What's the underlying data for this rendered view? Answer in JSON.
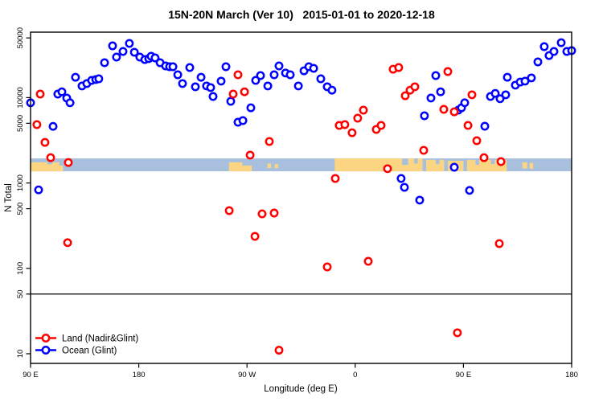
{
  "title": "15N-20N March (Ver 10)   2015-01-01 to 2020-12-18",
  "legend": {
    "items": [
      {
        "label": "Land (Nadir&Glint)",
        "color": "#ff0000"
      },
      {
        "label": "Ocean (Glint)",
        "color": "#0000ff"
      }
    ]
  },
  "chart_data": {
    "type": "scatter",
    "title": "15N-20N March (Ver 10)   2015-01-01 to 2020-12-18",
    "xlabel": "Longitude (deg E)",
    "ylabel": "N Total",
    "y_scale": "log10",
    "ylim": [
      8,
      60000
    ],
    "y_ticks": [
      50000,
      10000,
      5000,
      1000,
      500,
      100,
      50,
      10
    ],
    "x_axis_note": "x stored as degrees east of left edge; axis wraps the globe: 0=90E, 90=180, 180=90W, 270=0, 360=90E, 450=180",
    "x_span_deg": 450,
    "x_ticks": [
      {
        "d": 0,
        "label": "90 E"
      },
      {
        "d": 90,
        "label": "180"
      },
      {
        "d": 180,
        "label": "90 W"
      },
      {
        "d": 270,
        "label": "0"
      },
      {
        "d": 360,
        "label": "90 E"
      },
      {
        "d": 450,
        "label": "180"
      }
    ],
    "hline_value": 50,
    "grid": false,
    "legend_position": "bottom-left",
    "series": [
      {
        "name": "Ocean (Glint)",
        "color": "#0000ff",
        "marker": "open-circle",
        "points": [
          [
            0,
            8700
          ],
          [
            6.7,
            830
          ],
          [
            18.7,
            4600
          ],
          [
            22.7,
            11000
          ],
          [
            26.1,
            11700
          ],
          [
            30.1,
            9900
          ],
          [
            32.8,
            8700
          ],
          [
            37.4,
            17300
          ],
          [
            42.8,
            13700
          ],
          [
            46.8,
            14600
          ],
          [
            50.8,
            15900
          ],
          [
            54.2,
            16300
          ],
          [
            56.8,
            16600
          ],
          [
            61.5,
            25600
          ],
          [
            68.2,
            40400
          ],
          [
            71.5,
            29800
          ],
          [
            76.9,
            34700
          ],
          [
            82.2,
            43100
          ],
          [
            86.3,
            34000
          ],
          [
            90.9,
            29800
          ],
          [
            95,
            27900
          ],
          [
            98.3,
            28600
          ],
          [
            100.3,
            30500
          ],
          [
            103.6,
            29200
          ],
          [
            107.7,
            25600
          ],
          [
            112.3,
            23500
          ],
          [
            115.7,
            23000
          ],
          [
            118.4,
            23000
          ],
          [
            122.4,
            18500
          ],
          [
            126.4,
            14600
          ],
          [
            132.4,
            22500
          ],
          [
            137.1,
            13400
          ],
          [
            141.8,
            17300
          ],
          [
            146.4,
            13700
          ],
          [
            149.8,
            13100
          ],
          [
            151.8,
            10300
          ],
          [
            158.5,
            15600
          ],
          [
            162.5,
            23000
          ],
          [
            166.5,
            9050
          ],
          [
            172.5,
            5150
          ],
          [
            176.6,
            5380
          ],
          [
            183.2,
            7600
          ],
          [
            187.2,
            15900
          ],
          [
            191.2,
            18100
          ],
          [
            197.3,
            13700
          ],
          [
            202.6,
            18500
          ],
          [
            206.6,
            23500
          ],
          [
            212,
            19400
          ],
          [
            216,
            18500
          ],
          [
            222.7,
            13700
          ],
          [
            227.4,
            20600
          ],
          [
            231.4,
            23000
          ],
          [
            235.4,
            22000
          ],
          [
            241.4,
            16600
          ],
          [
            246.7,
            13400
          ],
          [
            250.7,
            12200
          ],
          [
            308.2,
            1130
          ],
          [
            310.9,
            890
          ],
          [
            323.6,
            630
          ],
          [
            327.6,
            6120
          ],
          [
            333,
            9900
          ],
          [
            337,
            18100
          ],
          [
            341,
            11700
          ],
          [
            352.4,
            1530
          ],
          [
            355.7,
            7130
          ],
          [
            358.4,
            7600
          ],
          [
            361.1,
            8700
          ],
          [
            365.1,
            820
          ],
          [
            377.8,
            4620
          ],
          [
            382.5,
            10300
          ],
          [
            386.5,
            11200
          ],
          [
            390.5,
            9700
          ],
          [
            395.2,
            10800
          ],
          [
            396.5,
            17300
          ],
          [
            403.2,
            14000
          ],
          [
            407.2,
            15200
          ],
          [
            411.2,
            15600
          ],
          [
            416.5,
            17000
          ],
          [
            421.9,
            26200
          ],
          [
            427.2,
            39500
          ],
          [
            431.2,
            31100
          ],
          [
            435.3,
            34700
          ],
          [
            441.3,
            44000
          ],
          [
            446,
            34700
          ],
          [
            450,
            35500
          ]
        ]
      },
      {
        "name": "Land (Nadir&Glint)",
        "color": "#ff0000",
        "marker": "open-circle",
        "points": [
          [
            8,
            11000
          ],
          [
            5.3,
            4830
          ],
          [
            12,
            2990
          ],
          [
            16.7,
            1980
          ],
          [
            31.4,
            1740
          ],
          [
            30.8,
            200
          ],
          [
            165.2,
            474
          ],
          [
            168.5,
            11000
          ],
          [
            172.5,
            18500
          ],
          [
            177.9,
            11700
          ],
          [
            182.6,
            2120
          ],
          [
            186.6,
            237
          ],
          [
            192.6,
            435
          ],
          [
            198.6,
            3060
          ],
          [
            202.6,
            444
          ],
          [
            206.6,
            11
          ],
          [
            246.7,
            104
          ],
          [
            253.4,
            1130
          ],
          [
            256.7,
            4720
          ],
          [
            261.4,
            4830
          ],
          [
            267.4,
            3880
          ],
          [
            272.1,
            5740
          ],
          [
            276.8,
            7130
          ],
          [
            280.8,
            121
          ],
          [
            287.5,
            4240
          ],
          [
            291.5,
            4720
          ],
          [
            296.9,
            1470
          ],
          [
            301.5,
            21500
          ],
          [
            306.2,
            22500
          ],
          [
            311.6,
            10500
          ],
          [
            315.6,
            12200
          ],
          [
            319.6,
            13400
          ],
          [
            327,
            2410
          ],
          [
            343.7,
            7280
          ],
          [
            347,
            20200
          ],
          [
            352.4,
            6820
          ],
          [
            363.8,
            4720
          ],
          [
            367.1,
            10800
          ],
          [
            371.1,
            3130
          ],
          [
            377.1,
            1980
          ],
          [
            391.2,
            1780
          ],
          [
            389.8,
            195
          ],
          [
            355,
            17.6
          ]
        ]
      }
    ],
    "map_band": {
      "description": "horizontal world-map strip of the 15N-20N latitude belt drawn across the plot",
      "value_top": 1940,
      "value_bottom": 1370,
      "ocean_color": "#a8c0de",
      "land_color": "#fcd583",
      "land_segments": [
        {
          "d0": 0,
          "d1": 24,
          "t": 0.3,
          "b": 1
        },
        {
          "d0": 24,
          "d1": 27,
          "t": 0.55,
          "b": 1
        },
        {
          "d0": 165,
          "d1": 176,
          "t": 0.3,
          "b": 1
        },
        {
          "d0": 176,
          "d1": 184,
          "t": 0.55,
          "b": 1
        },
        {
          "d0": 197,
          "d1": 200,
          "t": 0.4,
          "b": 0.75
        },
        {
          "d0": 203,
          "d1": 206,
          "t": 0.45,
          "b": 0.75
        },
        {
          "d0": 253,
          "d1": 326,
          "t": 0.0,
          "b": 1
        },
        {
          "d0": 329,
          "d1": 344,
          "t": 0.12,
          "b": 1
        },
        {
          "d0": 347,
          "d1": 360,
          "t": 0.18,
          "b": 1
        },
        {
          "d0": 363,
          "d1": 396,
          "t": 0.12,
          "b": 1
        },
        {
          "d0": 409,
          "d1": 413,
          "t": 0.3,
          "b": 0.78
        },
        {
          "d0": 415,
          "d1": 418,
          "t": 0.35,
          "b": 0.8
        }
      ],
      "ocean_notches": [
        {
          "d0": 14,
          "d1": 18,
          "t": 0,
          "b": 0.45
        },
        {
          "d0": 309,
          "d1": 314,
          "t": 0,
          "b": 0.5
        },
        {
          "d0": 319,
          "d1": 322,
          "t": 0,
          "b": 0.4
        },
        {
          "d0": 337,
          "d1": 340,
          "t": 0,
          "b": 0.45
        },
        {
          "d0": 370,
          "d1": 373,
          "t": 0,
          "b": 0.5
        },
        {
          "d0": 383,
          "d1": 386,
          "t": 0,
          "b": 0.45
        }
      ]
    }
  }
}
